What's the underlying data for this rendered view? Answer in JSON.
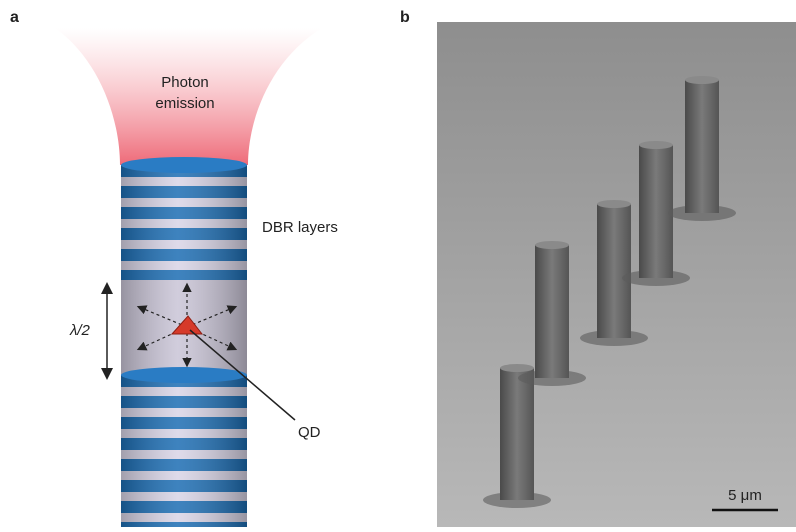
{
  "panel_a": {
    "label": "a",
    "emission": [
      "Photon",
      "emission"
    ],
    "dbr": "DBR layers",
    "cavity": "λ/2",
    "qd": "QD"
  },
  "panel_b": {
    "label": "b",
    "scale_bar": "5 μm"
  }
}
